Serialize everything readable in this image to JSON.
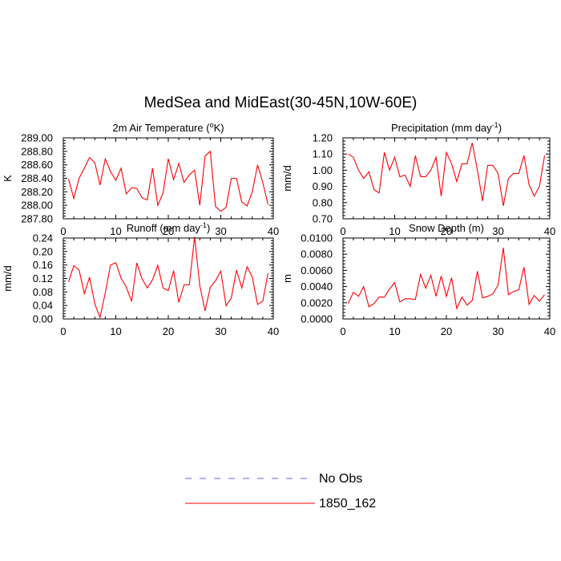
{
  "title": "MedSea and MidEast(30-45N,10W-60E)",
  "legend": {
    "placement": "bottom-center",
    "entries": [
      {
        "label": "No Obs",
        "color": "#6666ee",
        "style": "dashed"
      },
      {
        "label": "1850_162",
        "color": "#ff0000",
        "style": "solid"
      }
    ]
  },
  "chart_data": [
    {
      "type": "line",
      "title_main": "2m Air Temperature (",
      "title_sup": "o",
      "title_tail": "K)",
      "ylabel": "K",
      "xlim": [
        0,
        40
      ],
      "ylim": [
        287.8,
        289.0
      ],
      "xticks": [
        0,
        10,
        20,
        30,
        40
      ],
      "yticks": [
        287.8,
        288.0,
        288.2,
        288.4,
        288.6,
        288.8,
        289.0
      ],
      "ytick_labels": [
        "287.80",
        "288.00",
        "288.20",
        "288.40",
        "288.60",
        "288.80",
        "289.00"
      ],
      "series": [
        {
          "name": "1850_162",
          "color": "#ff0000",
          "x": [
            1,
            2,
            3,
            4,
            5,
            6,
            7,
            8,
            9,
            10,
            11,
            12,
            13,
            14,
            15,
            16,
            17,
            18,
            19,
            20,
            21,
            22,
            23,
            24,
            25,
            26,
            27,
            28,
            29,
            30,
            31,
            32,
            33,
            34,
            35,
            36,
            37,
            38,
            39
          ],
          "y": [
            288.39,
            288.1,
            288.4,
            288.55,
            288.71,
            288.63,
            288.3,
            288.69,
            288.5,
            288.37,
            288.55,
            288.17,
            288.26,
            288.25,
            288.11,
            288.08,
            288.55,
            288.0,
            288.18,
            288.69,
            288.38,
            288.62,
            288.34,
            288.45,
            288.52,
            288.0,
            288.73,
            288.8,
            287.98,
            287.91,
            287.97,
            288.4,
            288.4,
            288.05,
            287.99,
            288.2,
            288.6,
            288.34,
            288.01
          ]
        }
      ]
    },
    {
      "type": "line",
      "title_main": "Precipitation (mm day",
      "title_sup": "-1",
      "title_tail": ")",
      "ylabel": "mm/d",
      "xlim": [
        0,
        40
      ],
      "ylim": [
        0.7,
        1.2
      ],
      "xticks": [
        0,
        10,
        20,
        30,
        40
      ],
      "yticks": [
        0.7,
        0.8,
        0.9,
        1.0,
        1.1,
        1.2
      ],
      "ytick_labels": [
        "0.70",
        "0.80",
        "0.90",
        "1.00",
        "1.10",
        "1.20"
      ],
      "series": [
        {
          "name": "1850_162",
          "color": "#ff0000",
          "x": [
            1,
            2,
            3,
            4,
            5,
            6,
            7,
            8,
            9,
            10,
            11,
            12,
            13,
            14,
            15,
            16,
            17,
            18,
            19,
            20,
            21,
            22,
            23,
            24,
            25,
            26,
            27,
            28,
            29,
            30,
            31,
            32,
            33,
            34,
            35,
            36,
            37,
            38,
            39
          ],
          "y": [
            1.1,
            1.08,
            1.0,
            0.95,
            0.99,
            0.88,
            0.86,
            1.11,
            1.0,
            1.08,
            0.96,
            0.97,
            0.9,
            1.09,
            0.96,
            0.96,
            1.0,
            1.08,
            0.84,
            1.11,
            1.04,
            0.93,
            1.04,
            1.04,
            1.17,
            1.0,
            0.81,
            1.03,
            1.03,
            0.98,
            0.78,
            0.95,
            0.98,
            0.98,
            1.09,
            0.91,
            0.84,
            0.9,
            1.09
          ]
        }
      ]
    },
    {
      "type": "line",
      "title_main": "Runoff (mm day",
      "title_sup": "-1",
      "title_tail": ")",
      "ylabel": "mm/d",
      "xlim": [
        0,
        40
      ],
      "ylim": [
        0.0,
        0.24
      ],
      "xticks": [
        0,
        10,
        20,
        30,
        40
      ],
      "yticks": [
        0.0,
        0.04,
        0.08,
        0.12,
        0.16,
        0.2,
        0.24
      ],
      "ytick_labels": [
        "0.00",
        "0.04",
        "0.08",
        "0.12",
        "0.16",
        "0.20",
        "0.24"
      ],
      "series": [
        {
          "name": "1850_162",
          "color": "#ff0000",
          "x": [
            1,
            2,
            3,
            4,
            5,
            6,
            7,
            8,
            9,
            10,
            11,
            12,
            13,
            14,
            15,
            16,
            17,
            18,
            19,
            20,
            21,
            22,
            23,
            24,
            25,
            26,
            27,
            28,
            29,
            30,
            31,
            32,
            33,
            34,
            35,
            36,
            37,
            38,
            39
          ],
          "y": [
            0.11,
            0.158,
            0.145,
            0.075,
            0.124,
            0.045,
            0.004,
            0.078,
            0.16,
            0.167,
            0.121,
            0.094,
            0.052,
            0.166,
            0.119,
            0.092,
            0.116,
            0.159,
            0.092,
            0.084,
            0.143,
            0.049,
            0.101,
            0.101,
            0.243,
            0.099,
            0.024,
            0.094,
            0.113,
            0.142,
            0.039,
            0.062,
            0.145,
            0.092,
            0.155,
            0.124,
            0.043,
            0.053,
            0.136
          ]
        }
      ]
    },
    {
      "type": "line",
      "title_main": "Snow Depth (m)",
      "title_sup": "",
      "title_tail": "",
      "ylabel": "m",
      "xlim": [
        0,
        40
      ],
      "ylim": [
        0.0,
        0.01
      ],
      "xticks": [
        0,
        10,
        20,
        30,
        40
      ],
      "yticks": [
        0.0,
        0.002,
        0.004,
        0.006,
        0.008,
        0.01
      ],
      "ytick_labels": [
        "0.0000",
        "0.0020",
        "0.0040",
        "0.0060",
        "0.0080",
        "0.0100"
      ],
      "series": [
        {
          "name": "1850_162",
          "color": "#ff0000",
          "x": [
            1,
            2,
            3,
            4,
            5,
            6,
            7,
            8,
            9,
            10,
            11,
            12,
            13,
            14,
            15,
            16,
            17,
            18,
            19,
            20,
            21,
            22,
            23,
            24,
            25,
            26,
            27,
            28,
            29,
            30,
            31,
            32,
            33,
            34,
            35,
            36,
            37,
            38,
            39
          ],
          "y": [
            0.0019,
            0.0033,
            0.0028,
            0.004,
            0.0015,
            0.0019,
            0.0027,
            0.0027,
            0.0037,
            0.0045,
            0.0021,
            0.0025,
            0.0025,
            0.0024,
            0.0055,
            0.0038,
            0.0054,
            0.0028,
            0.0053,
            0.0028,
            0.0051,
            0.0013,
            0.0027,
            0.0017,
            0.0023,
            0.0059,
            0.0026,
            0.0028,
            0.0031,
            0.0042,
            0.0088,
            0.003,
            0.0034,
            0.0036,
            0.0064,
            0.0018,
            0.0029,
            0.0022,
            0.003
          ]
        }
      ]
    }
  ]
}
